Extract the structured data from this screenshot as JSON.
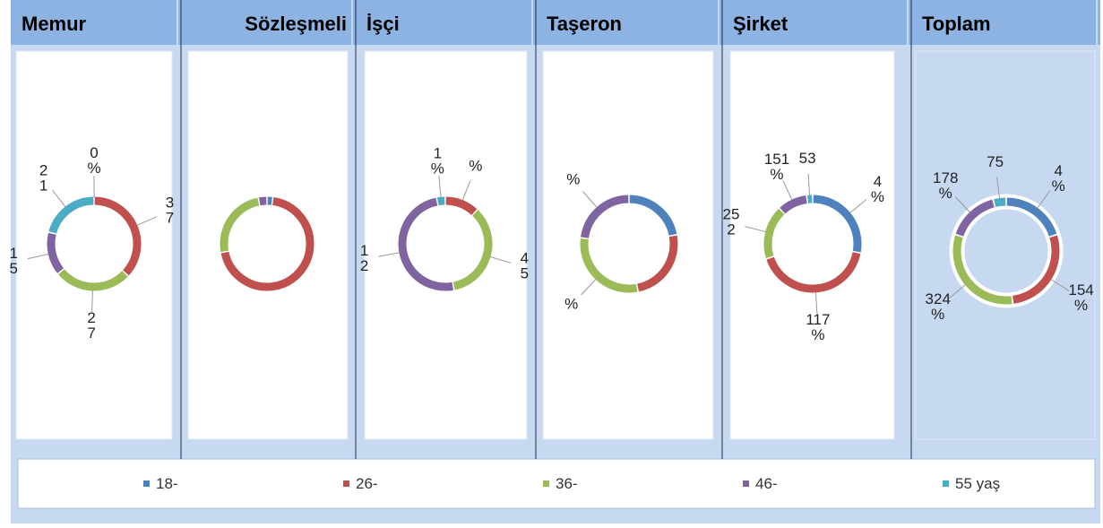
{
  "chart_data": [
    {
      "type": "pie",
      "title": "Memur",
      "values": [
        0,
        37,
        27,
        15,
        21
      ],
      "labels": [
        "0\n%",
        "3\n7",
        "2\n7",
        "1\n5",
        "2\n1"
      ]
    },
    {
      "type": "pie",
      "title": "Sözleşmeli",
      "values": [
        2,
        70,
        25,
        3,
        0
      ],
      "labels": [
        null,
        null,
        null,
        null,
        null
      ]
    },
    {
      "type": "pie",
      "title": "İşçi",
      "values": [
        0,
        12,
        35,
        50,
        3
      ],
      "labels": [
        null,
        "%",
        "4\n5",
        "1\n2",
        "1\n%"
      ]
    },
    {
      "type": "pie",
      "title": "Taşeron",
      "values": [
        22,
        25,
        30,
        23,
        0
      ],
      "labels": [
        null,
        null,
        "%",
        "%",
        null
      ]
    },
    {
      "type": "pie",
      "title": "Şirket",
      "values": [
        28,
        42,
        18,
        10,
        2
      ],
      "labels": [
        "4\n%",
        "117\n%",
        "25\n2",
        "151\n%",
        "53"
      ]
    },
    {
      "type": "pie",
      "title": "Toplam",
      "values": [
        20,
        28,
        32,
        16,
        4
      ],
      "labels": [
        "4\n%",
        "154\n%",
        "324\n%",
        "178\n%",
        "75"
      ]
    }
  ],
  "legend": {
    "categories": [
      "18-",
      "26-",
      "36-",
      "46-",
      "55 yaş"
    ],
    "colors": [
      "#4f81bd",
      "#c0504d",
      "#9bbb59",
      "#8064a2",
      "#4bacc6"
    ]
  }
}
